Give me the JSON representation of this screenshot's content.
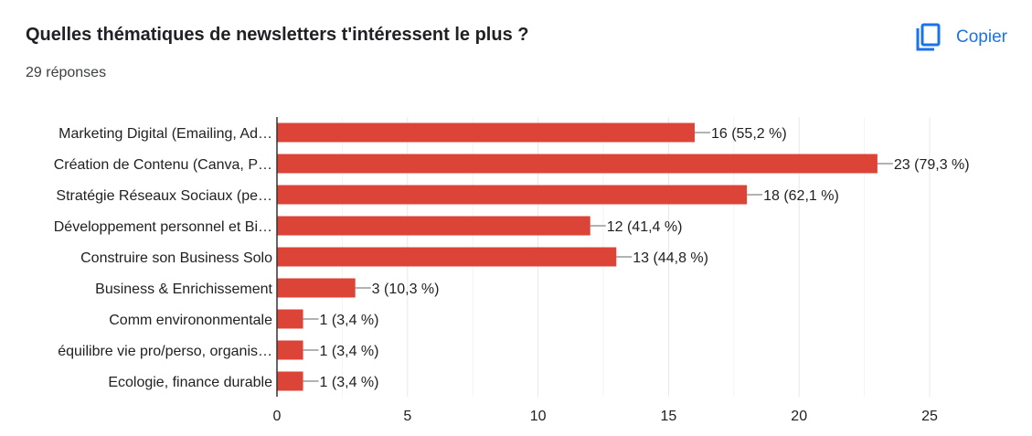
{
  "header": {
    "title": "Quelles thématiques de newsletters t'intéressent le plus ?",
    "responses": "29 réponses",
    "copy_label": "Copier",
    "copy_icon": "copy-icon"
  },
  "colors": {
    "bar": "#db4437",
    "accent": "#1a73e8",
    "grid": "#e8e8e8",
    "axis": "#333333"
  },
  "chart_data": {
    "type": "bar",
    "orientation": "horizontal",
    "categories": [
      "Marketing Digital (Emailing, Ad…",
      "Création de Contenu (Canva, P…",
      "Stratégie Réseaux Sociaux (pe…",
      "Développement personnel et Bi…",
      "Construire son Business Solo",
      "Business & Enrichissement",
      "Comm environonmentale",
      "équilibre vie pro/perso, organis…",
      "Ecologie, finance durable"
    ],
    "values": [
      16,
      23,
      18,
      12,
      13,
      3,
      1,
      1,
      1
    ],
    "data_labels": [
      "16 (55,2 %)",
      "23 (79,3 %)",
      "18 (62,1 %)",
      "12 (41,4 %)",
      "13 (44,8 %)",
      "3 (10,3 %)",
      "1 (3,4 %)",
      "1 (3,4 %)",
      "1 (3,4 %)"
    ],
    "xlim": [
      0,
      25
    ],
    "xticks": [
      0,
      5,
      10,
      15,
      20,
      25
    ],
    "grid": true
  }
}
